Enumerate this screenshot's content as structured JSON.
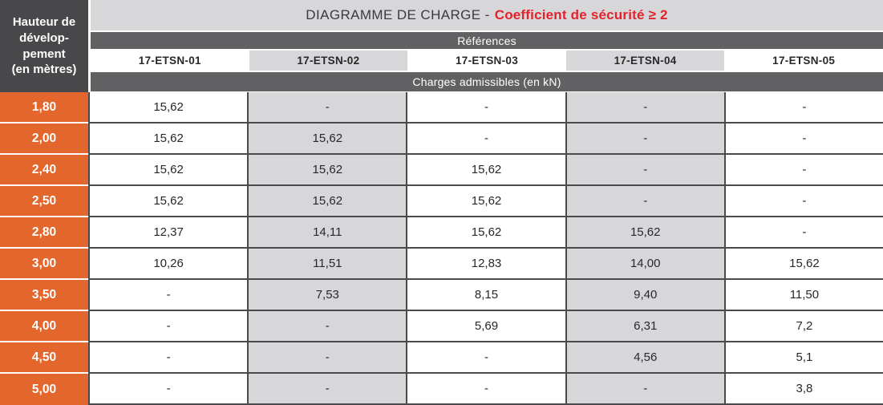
{
  "table": {
    "corner_label": "Hauteur de\ndévelop-\npement\n(en mètres)",
    "title": {
      "left": "DIAGRAMME DE CHARGE -",
      "right": "Coefficient de sécurité ≥ 2"
    },
    "references_label": "Références",
    "charges_label": "Charges admissibles (en kN)",
    "columns": [
      "17-ETSN-01",
      "17-ETSN-02",
      "17-ETSN-03",
      "17-ETSN-04",
      "17-ETSN-05"
    ],
    "rows": [
      {
        "height": "1,80",
        "values": [
          "15,62",
          "-",
          "-",
          "-",
          "-"
        ]
      },
      {
        "height": "2,00",
        "values": [
          "15,62",
          "15,62",
          "-",
          "-",
          "-"
        ]
      },
      {
        "height": "2,40",
        "values": [
          "15,62",
          "15,62",
          "15,62",
          "-",
          "-"
        ]
      },
      {
        "height": "2,50",
        "values": [
          "15,62",
          "15,62",
          "15,62",
          "-",
          "-"
        ]
      },
      {
        "height": "2,80",
        "values": [
          "12,37",
          "14,11",
          "15,62",
          "15,62",
          "-"
        ]
      },
      {
        "height": "3,00",
        "values": [
          "10,26",
          "11,51",
          "12,83",
          "14,00",
          "15,62"
        ]
      },
      {
        "height": "3,50",
        "values": [
          "-",
          "7,53",
          "8,15",
          "9,40",
          "11,50"
        ]
      },
      {
        "height": "4,00",
        "values": [
          "-",
          "-",
          "5,69",
          "6,31",
          "7,2"
        ]
      },
      {
        "height": "4,50",
        "values": [
          "-",
          "-",
          "-",
          "4,56",
          "5,1"
        ]
      },
      {
        "height": "5,00",
        "values": [
          "-",
          "-",
          "-",
          "-",
          "3,8"
        ]
      }
    ],
    "colors": {
      "accent_orange": "#e3662c",
      "accent_red": "#e3232b",
      "dark_band": "#616164",
      "corner_dark": "#48484b",
      "stripe_gray": "#d7d7d9",
      "border_dark": "#4a4a4d"
    }
  }
}
